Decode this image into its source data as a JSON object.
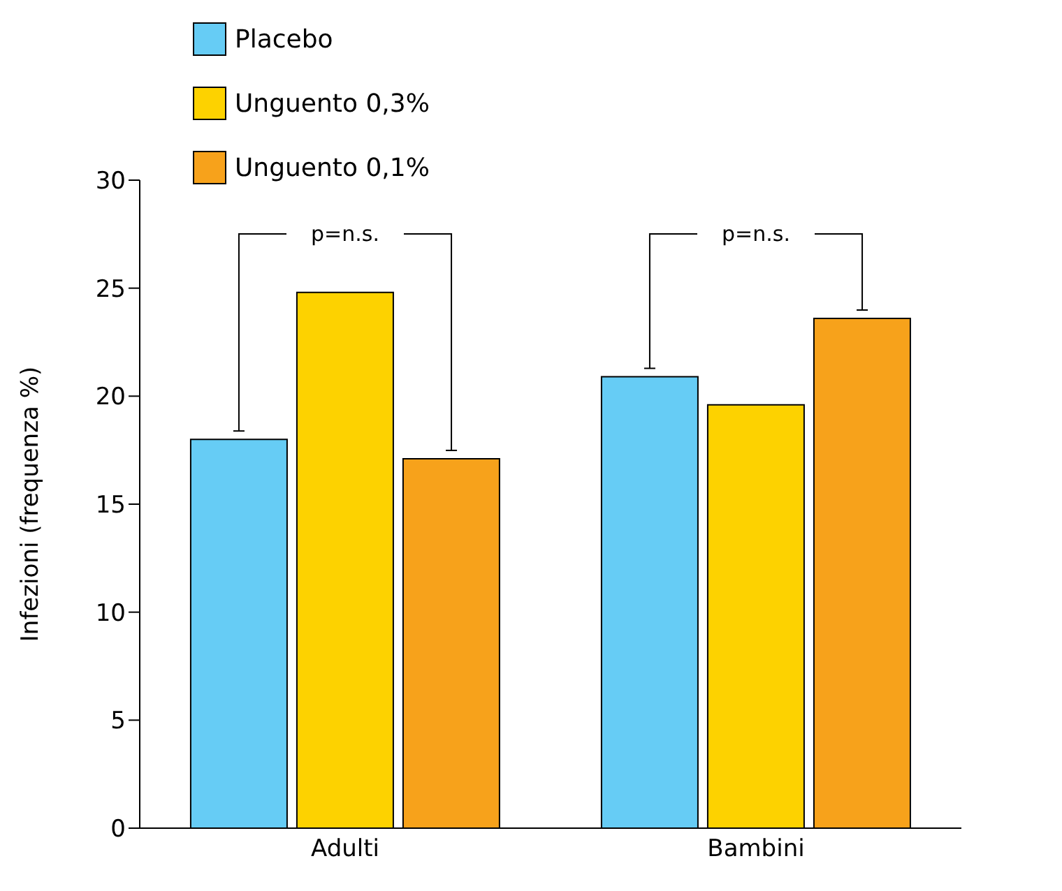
{
  "chart_data": {
    "type": "bar",
    "ylabel": "Infezioni (frequenza %)",
    "categories": [
      "Adulti",
      "Bambini"
    ],
    "series": [
      {
        "name": "Placebo",
        "color": "#66ccf5",
        "values": [
          18.0,
          20.9
        ]
      },
      {
        "name": "Unguento 0,3%",
        "color": "#fdd200",
        "values": [
          24.8,
          19.6
        ]
      },
      {
        "name": "Unguento 0,1%",
        "color": "#f7a21b",
        "values": [
          17.1,
          23.6
        ]
      }
    ],
    "ylim": [
      0,
      30
    ],
    "yticks": [
      0,
      5,
      10,
      15,
      20,
      25,
      30
    ],
    "grid": false,
    "legend": "top left",
    "annotations": [
      "p=n.s.",
      "p=n.s."
    ]
  }
}
